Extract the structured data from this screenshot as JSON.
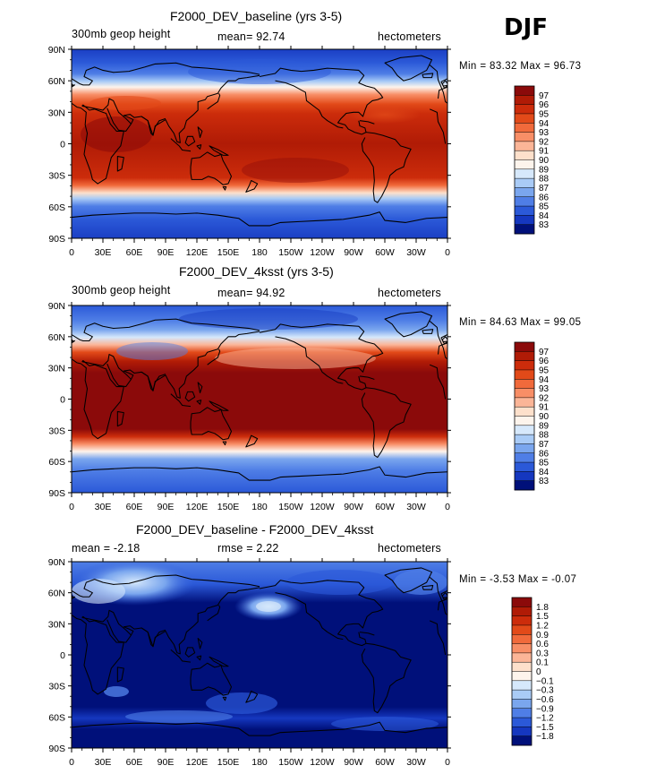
{
  "season": "DJF",
  "panels": [
    {
      "title": "F2000_DEV_baseline (yrs 3-5)",
      "left_label": "300mb geop height",
      "center_label": "mean=  92.74",
      "right_label": "hectometers",
      "minmax": "Min =  83.32 Max =  96.73",
      "cb_labels": [
        "97",
        "96",
        "95",
        "94",
        "93",
        "92",
        "91",
        "90",
        "89",
        "88",
        "87",
        "86",
        "85",
        "84",
        "83"
      ],
      "cb_colors": [
        "#8b0a0a",
        "#b01b06",
        "#cc2c0b",
        "#e24a19",
        "#f16a3b",
        "#f88e66",
        "#fbb597",
        "#fde0cb",
        "#fdf4ec",
        "#d6e8fb",
        "#a9cbf6",
        "#7aa6ee",
        "#4f7ee6",
        "#2b59d8",
        "#1537bf",
        "#00107a"
      ],
      "lat_labels": [
        "90N",
        "60N",
        "30N",
        "0",
        "30S",
        "60S",
        "90S"
      ],
      "lon_labels": [
        "0",
        "30E",
        "60E",
        "90E",
        "120E",
        "150E",
        "180",
        "150W",
        "120W",
        "90W",
        "60W",
        "30W",
        "0"
      ]
    },
    {
      "title": "F2000_DEV_4ksst (yrs 3-5)",
      "left_label": "300mb geop height",
      "center_label": "mean=  94.92",
      "right_label": "hectometers",
      "minmax": "Min =  84.63 Max =  99.05",
      "cb_labels": [
        "97",
        "96",
        "95",
        "94",
        "93",
        "92",
        "91",
        "90",
        "89",
        "88",
        "87",
        "86",
        "85",
        "84",
        "83"
      ],
      "cb_colors": [
        "#8b0a0a",
        "#b01b06",
        "#cc2c0b",
        "#e24a19",
        "#f16a3b",
        "#f88e66",
        "#fbb597",
        "#fde0cb",
        "#fdf4ec",
        "#d6e8fb",
        "#a9cbf6",
        "#7aa6ee",
        "#4f7ee6",
        "#2b59d8",
        "#1537bf",
        "#00107a"
      ],
      "lat_labels": [
        "90N",
        "60N",
        "30N",
        "0",
        "30S",
        "60S",
        "90S"
      ],
      "lon_labels": [
        "0",
        "30E",
        "60E",
        "90E",
        "120E",
        "150E",
        "180",
        "150W",
        "120W",
        "90W",
        "60W",
        "30W",
        "0"
      ]
    },
    {
      "title": "F2000_DEV_baseline - F2000_DEV_4ksst",
      "left_label": "mean =   -2.18",
      "center_label": "rmse =    2.22",
      "right_label": "hectometers",
      "minmax": "Min =  -3.53 Max =  -0.07",
      "cb_labels": [
        "1.8",
        "1.5",
        "1.2",
        "0.9",
        "0.6",
        "0.3",
        "0.1",
        "0",
        "−0.1",
        "−0.3",
        "−0.6",
        "−0.9",
        "−1.2",
        "−1.5",
        "−1.8"
      ],
      "cb_colors": [
        "#8b0a0a",
        "#b01b06",
        "#cc2c0b",
        "#e24a19",
        "#f16a3b",
        "#f88e66",
        "#fbb597",
        "#fde0cb",
        "#fdf4ec",
        "#d6e8fb",
        "#a9cbf6",
        "#7aa6ee",
        "#4f7ee6",
        "#2b59d8",
        "#1537bf",
        "#00107a"
      ],
      "lat_labels": [
        "90N",
        "60N",
        "30N",
        "0",
        "30S",
        "60S",
        "90S"
      ],
      "lon_labels": [
        "0",
        "30E",
        "60E",
        "90E",
        "120E",
        "150E",
        "180",
        "150W",
        "120W",
        "90W",
        "60W",
        "30W",
        "0"
      ]
    }
  ]
}
